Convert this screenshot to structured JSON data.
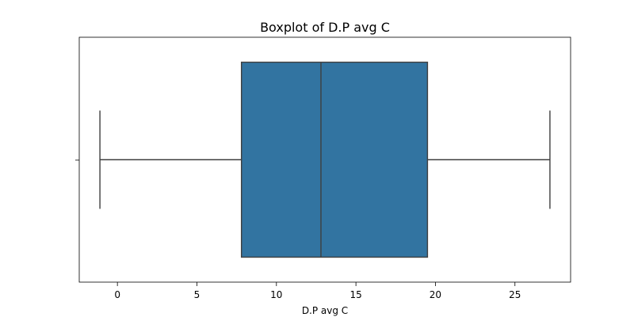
{
  "chart_data": {
    "type": "box",
    "orientation": "horizontal",
    "title": "Boxplot of D.P avg C",
    "xlabel": "D.P avg C",
    "ylabel": "",
    "xlim": [
      -2.4,
      28.5
    ],
    "xticks": [
      0,
      5,
      10,
      15,
      20,
      25
    ],
    "xtick_labels": [
      "0",
      "5",
      "10",
      "15",
      "20",
      "25"
    ],
    "box": {
      "whisker_low": -1.1,
      "q1": 7.8,
      "median": 12.8,
      "q3": 19.5,
      "whisker_high": 27.2
    },
    "grid": false,
    "colors": {
      "box_fill": "#3274a1",
      "line": "#3f3f3f",
      "axes": "#000000"
    }
  }
}
